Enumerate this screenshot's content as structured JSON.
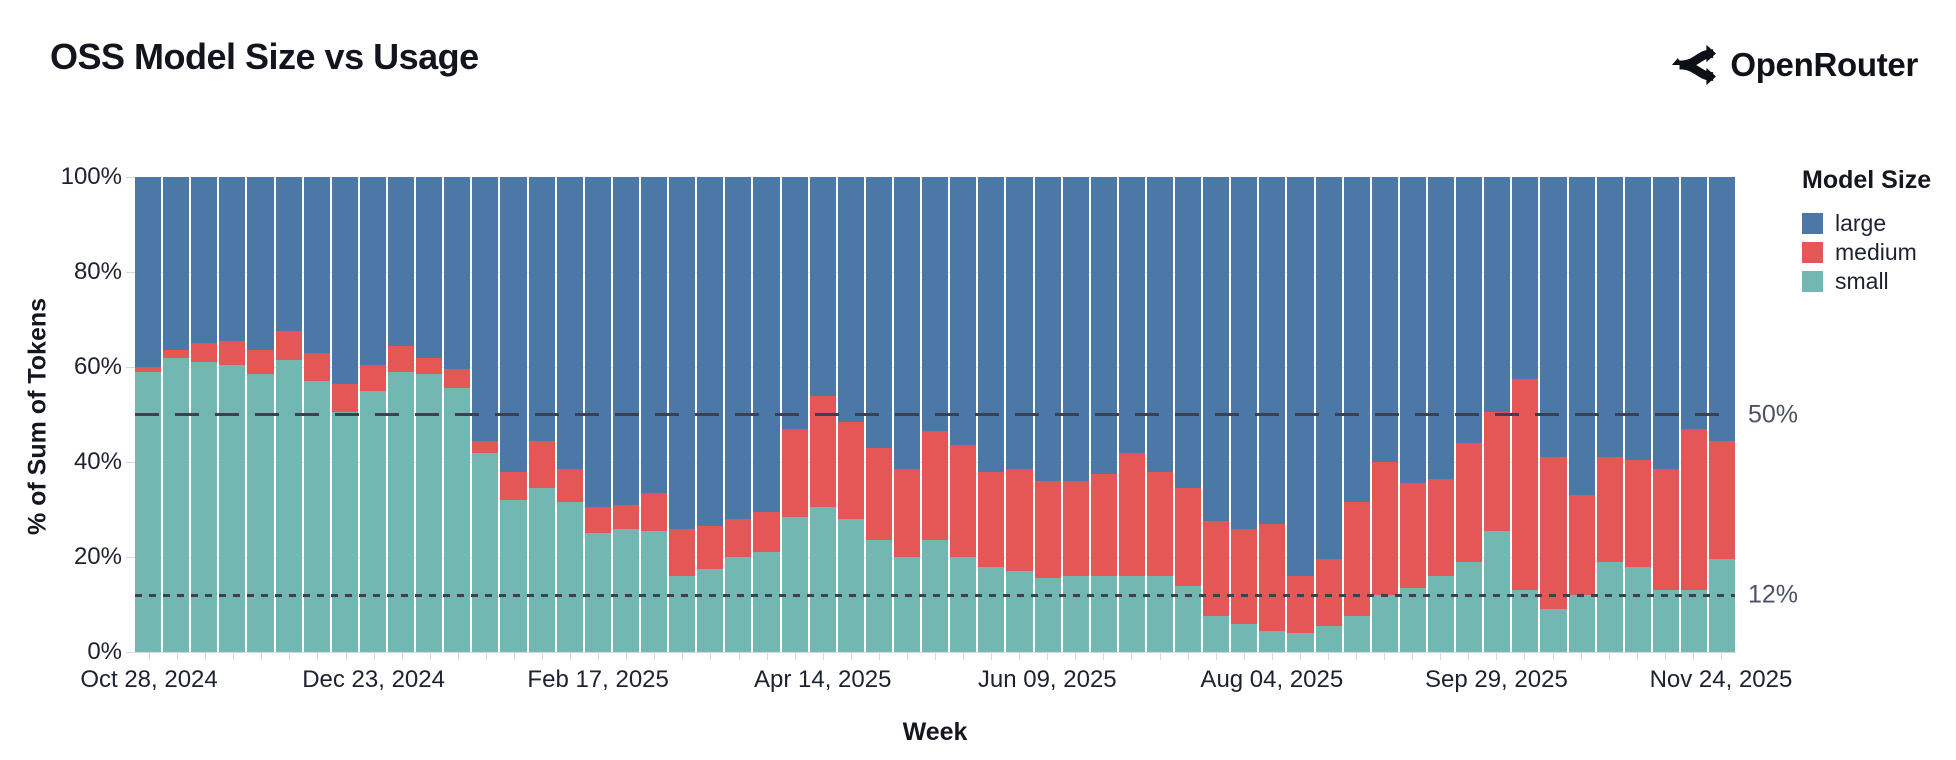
{
  "header": {
    "title": "OSS Model Size vs Usage",
    "brand": "OpenRouter"
  },
  "chart_data": {
    "type": "bar",
    "stacked": true,
    "title": "OSS Model Size vs Usage",
    "xlabel": "Week",
    "ylabel": "% of Sum of Tokens",
    "ylim": [
      0,
      100
    ],
    "y_ticks": [
      0,
      20,
      40,
      60,
      80,
      100
    ],
    "y_tick_labels": [
      "0%",
      "20%",
      "40%",
      "60%",
      "80%",
      "100%"
    ],
    "grid": true,
    "legend_position": "right",
    "legend": {
      "title": "Model Size",
      "items": [
        {
          "label": "large",
          "color": "#4c78a8"
        },
        {
          "label": "medium",
          "color": "#e45756"
        },
        {
          "label": "small",
          "color": "#72b7b2"
        }
      ]
    },
    "ref_lines": [
      {
        "value": 50,
        "label": "50%",
        "style": "dashed",
        "color": "#3a4152"
      },
      {
        "value": 12,
        "label": "12%",
        "style": "dotted",
        "color": "#3a4152"
      }
    ],
    "categories": [
      "Oct 28, 2024",
      "Nov 04, 2024",
      "Nov 11, 2024",
      "Nov 18, 2024",
      "Nov 25, 2024",
      "Dec 02, 2024",
      "Dec 09, 2024",
      "Dec 16, 2024",
      "Dec 23, 2024",
      "Dec 30, 2024",
      "Jan 06, 2025",
      "Jan 13, 2025",
      "Jan 20, 2025",
      "Jan 27, 2025",
      "Feb 03, 2025",
      "Feb 10, 2025",
      "Feb 17, 2025",
      "Feb 24, 2025",
      "Mar 03, 2025",
      "Mar 10, 2025",
      "Mar 17, 2025",
      "Mar 24, 2025",
      "Mar 31, 2025",
      "Apr 07, 2025",
      "Apr 14, 2025",
      "Apr 21, 2025",
      "Apr 28, 2025",
      "May 05, 2025",
      "May 12, 2025",
      "May 19, 2025",
      "May 26, 2025",
      "Jun 02, 2025",
      "Jun 09, 2025",
      "Jun 16, 2025",
      "Jun 23, 2025",
      "Jun 30, 2025",
      "Jul 07, 2025",
      "Jul 14, 2025",
      "Jul 21, 2025",
      "Jul 28, 2025",
      "Aug 04, 2025",
      "Aug 11, 2025",
      "Aug 18, 2025",
      "Aug 25, 2025",
      "Sep 01, 2025",
      "Sep 08, 2025",
      "Sep 15, 2025",
      "Sep 22, 2025",
      "Sep 29, 2025",
      "Oct 06, 2025",
      "Oct 13, 2025",
      "Oct 20, 2025",
      "Oct 27, 2025",
      "Nov 03, 2025",
      "Nov 10, 2025",
      "Nov 17, 2025",
      "Nov 24, 2025"
    ],
    "labeled_tick_indices": [
      0,
      8,
      16,
      24,
      32,
      40,
      48,
      56
    ],
    "x_tick_labels": [
      "Oct 28, 2024",
      "Dec 23, 2024",
      "Feb 17, 2025",
      "Apr 14, 2025",
      "Jun 09, 2025",
      "Aug 04, 2025",
      "Sep 29, 2025",
      "Nov 24, 2025"
    ],
    "series": [
      {
        "name": "small",
        "color": "#72b7b2",
        "values": [
          59,
          62,
          61,
          60.5,
          58.5,
          61.5,
          57,
          50.5,
          55,
          59,
          58.5,
          55.5,
          42,
          32,
          34.5,
          31.5,
          25,
          26,
          25.5,
          16,
          17.5,
          20,
          21,
          28.5,
          30.5,
          28,
          23.5,
          20,
          23.5,
          20,
          18,
          17,
          15.5,
          16,
          16,
          16,
          16,
          14,
          7.5,
          6,
          4.5,
          4,
          5.5,
          7.5,
          12,
          13.5,
          16,
          19,
          25.5,
          13,
          9,
          12,
          19,
          18,
          13,
          13,
          19.5
        ]
      },
      {
        "name": "medium",
        "color": "#e45756",
        "values": [
          1,
          1.5,
          4,
          5,
          5,
          6,
          6,
          6,
          5.5,
          5.5,
          3.5,
          4,
          2.5,
          6,
          10,
          7,
          5.5,
          5,
          8,
          10,
          9,
          8,
          8.5,
          18.5,
          23.5,
          20.5,
          19.5,
          18.5,
          23,
          23.5,
          20,
          21.5,
          20.5,
          20,
          21.5,
          26,
          22,
          20.5,
          20,
          20,
          22.5,
          12,
          14,
          24,
          28,
          22,
          20.5,
          25,
          25,
          44.5,
          32,
          21,
          22,
          22.5,
          25.5,
          34,
          25
        ]
      },
      {
        "name": "large",
        "color": "#4c78a8",
        "values": [
          40,
          36.5,
          35,
          34.5,
          36.5,
          32.5,
          37,
          43.5,
          39.5,
          35.5,
          38,
          40.5,
          55.5,
          62,
          55.5,
          61.5,
          69.5,
          69,
          66.5,
          74,
          73.5,
          72,
          70.5,
          53,
          46,
          51.5,
          57,
          61.5,
          53.5,
          56.5,
          62,
          61.5,
          64,
          64,
          62.5,
          58,
          62,
          65.5,
          72.5,
          74,
          73,
          84,
          80.5,
          68.5,
          60,
          64.5,
          63.5,
          56,
          49.5,
          42.5,
          59,
          67,
          59,
          59.5,
          61.5,
          53,
          55.5
        ]
      }
    ]
  }
}
